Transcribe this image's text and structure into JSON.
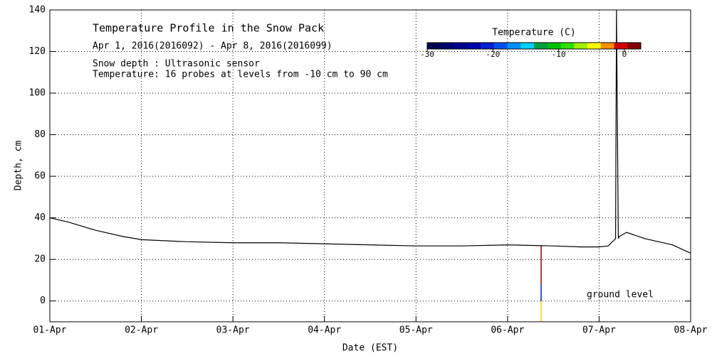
{
  "chart_data": {
    "type": "line",
    "title": "Temperature Profile in the Snow Pack",
    "subtitle": "Apr  1, 2016(2016092) - Apr  8, 2016(2016099)",
    "notes": [
      "Snow depth : Ultrasonic sensor",
      "Temperature: 16 probes at levels from -10 cm to 90 cm"
    ],
    "annotation": "ground level",
    "xlabel": "Date (EST)",
    "ylabel": "Depth, cm",
    "xlim": [
      0,
      7
    ],
    "xticks": [
      {
        "value": 0,
        "label": "01-Apr"
      },
      {
        "value": 1,
        "label": "02-Apr"
      },
      {
        "value": 2,
        "label": "03-Apr"
      },
      {
        "value": 3,
        "label": "04-Apr"
      },
      {
        "value": 4,
        "label": "05-Apr"
      },
      {
        "value": 5,
        "label": "06-Apr"
      },
      {
        "value": 6,
        "label": "07-Apr"
      },
      {
        "value": 7,
        "label": "08-Apr"
      }
    ],
    "ylim": [
      -10,
      140
    ],
    "yticks": [
      0,
      20,
      40,
      60,
      80,
      100,
      120,
      140
    ],
    "grid": true,
    "series": [
      {
        "name": "Snow depth",
        "color": "#000000",
        "x": [
          0,
          0.2,
          0.5,
          0.8,
          1.0,
          1.5,
          2.0,
          2.5,
          3.0,
          3.5,
          4.0,
          4.5,
          5.0,
          5.5,
          5.8,
          6.0,
          6.1,
          6.18,
          6.19,
          6.2,
          6.21,
          6.22,
          6.3,
          6.5,
          6.8,
          7.0
        ],
        "values": [
          40,
          38,
          34,
          31,
          29.5,
          28.5,
          28,
          28,
          27.5,
          27,
          26.5,
          26.5,
          27,
          26.5,
          26,
          26,
          26.5,
          30,
          140,
          86,
          30,
          31,
          33,
          30,
          27,
          23
        ]
      }
    ],
    "colorbar": {
      "title": "Temperature (C)",
      "lim": [
        -30,
        2.5
      ],
      "ticks": [
        -30,
        -20,
        -10,
        0
      ],
      "colors": [
        "#000050",
        "#00006e",
        "#00008c",
        "#0000aa",
        "#0020d0",
        "#0050f0",
        "#0090ff",
        "#00d0ff",
        "#00a040",
        "#00c000",
        "#30e000",
        "#a0f000",
        "#ffff00",
        "#ff9000",
        "#d00000",
        "#800000"
      ]
    }
  }
}
